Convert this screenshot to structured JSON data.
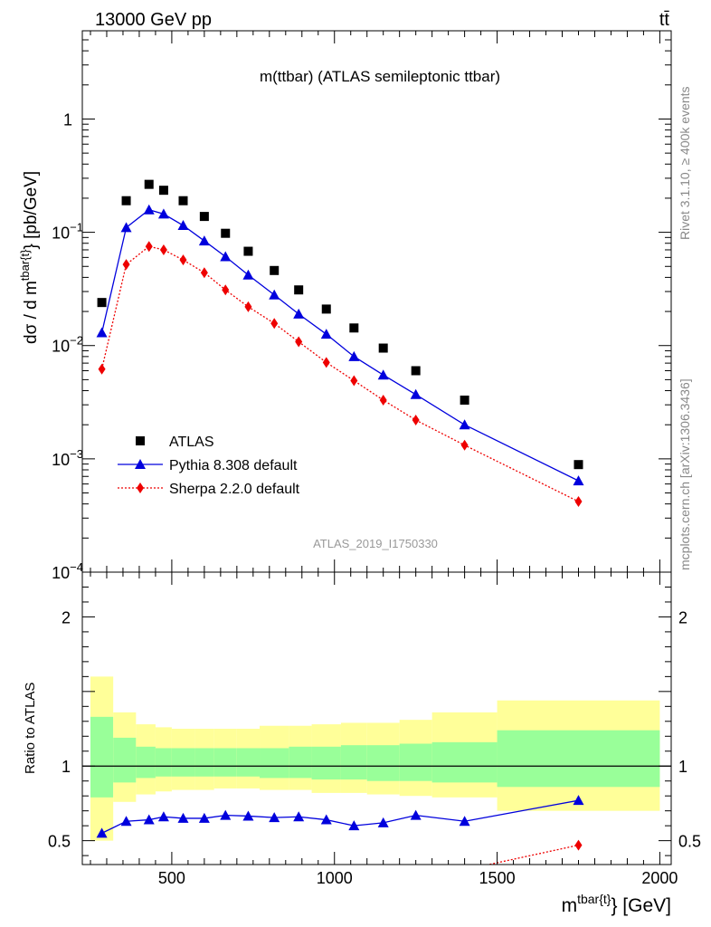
{
  "header": {
    "left": "13000 GeV pp",
    "right": "tt̄",
    "plot_title": "m(ttbar) (ATLAS semileptonic ttbar)",
    "watermark": "ATLAS_2019_I1750330",
    "side_top": "Rivet 3.1.10, ≥ 400k events",
    "side_bottom": "mcplots.cern.ch [arXiv:1306.3436]"
  },
  "colors": {
    "data": "#000000",
    "pythia": "#0000dd",
    "sherpa": "#ee0000",
    "band_inner": "#99ff99",
    "band_outer": "#ffff99"
  },
  "chart_data": [
    {
      "type": "scatter",
      "title": "m(ttbar) (ATLAS semileptonic ttbar)",
      "xlabel_main": "m",
      "xlabel_sup": "tbar{t}",
      "xlabel_tail": "} [GeV]",
      "ylabel": "dσ / d m^{tbar{t}} [pb/GeV]",
      "yscale": "log",
      "ylim": [
        0.0001,
        5
      ],
      "xlim": [
        225,
        2035
      ],
      "yticks": [
        {
          "value": 0.0001,
          "base": "10",
          "exp": "−4"
        },
        {
          "value": 0.001,
          "base": "10",
          "exp": "−3"
        },
        {
          "value": 0.01,
          "base": "10",
          "exp": "−2"
        },
        {
          "value": 0.1,
          "base": "10",
          "exp": "−1"
        },
        {
          "value": 1,
          "base": "1",
          "exp": ""
        }
      ],
      "legend_position": "bottom-left",
      "x": [
        285,
        360,
        430,
        475,
        535,
        600,
        665,
        735,
        815,
        890,
        975,
        1060,
        1150,
        1250,
        1400,
        1750
      ],
      "series": [
        {
          "name": "ATLAS",
          "marker": "square",
          "values": [
            0.024,
            0.19,
            0.265,
            0.235,
            0.19,
            0.138,
            0.098,
            0.068,
            0.046,
            0.031,
            0.021,
            0.0143,
            0.0095,
            0.006,
            0.0033,
            0.00089
          ]
        },
        {
          "name": "Pythia 8.308 default",
          "marker": "triangle",
          "line": "solid",
          "values": [
            0.013,
            0.11,
            0.158,
            0.145,
            0.115,
            0.084,
            0.061,
            0.042,
            0.028,
            0.019,
            0.0126,
            0.008,
            0.0055,
            0.0037,
            0.002,
            0.00064
          ]
        },
        {
          "name": "Sherpa 2.2.0 default",
          "marker": "diamond",
          "line": "dotted",
          "values": [
            0.0062,
            0.052,
            0.075,
            0.07,
            0.057,
            0.044,
            0.031,
            0.022,
            0.0157,
            0.0108,
            0.0071,
            0.0049,
            0.0033,
            0.0022,
            0.00132,
            0.00042
          ]
        }
      ]
    },
    {
      "type": "line",
      "ylabel": "Ratio to ATLAS",
      "ylim": [
        0.34,
        2.3
      ],
      "yticks": [
        0.5,
        1,
        2
      ],
      "xticks": [
        500,
        1000,
        1500,
        2000
      ],
      "bins": [
        [
          250,
          320
        ],
        [
          320,
          390
        ],
        [
          390,
          450
        ],
        [
          450,
          500
        ],
        [
          500,
          570
        ],
        [
          570,
          630
        ],
        [
          630,
          700
        ],
        [
          700,
          770
        ],
        [
          770,
          860
        ],
        [
          860,
          930
        ],
        [
          930,
          1020
        ],
        [
          1020,
          1100
        ],
        [
          1100,
          1200
        ],
        [
          1200,
          1300
        ],
        [
          1300,
          1500
        ],
        [
          1500,
          2000
        ]
      ],
      "band_inner": [
        [
          0.79,
          1.33
        ],
        [
          0.89,
          1.19
        ],
        [
          0.92,
          1.13
        ],
        [
          0.93,
          1.12
        ],
        [
          0.93,
          1.12
        ],
        [
          0.93,
          1.12
        ],
        [
          0.93,
          1.12
        ],
        [
          0.93,
          1.12
        ],
        [
          0.92,
          1.12
        ],
        [
          0.92,
          1.13
        ],
        [
          0.91,
          1.13
        ],
        [
          0.91,
          1.14
        ],
        [
          0.9,
          1.14
        ],
        [
          0.9,
          1.15
        ],
        [
          0.89,
          1.16
        ],
        [
          0.86,
          1.24
        ]
      ],
      "band_outer": [
        [
          0.5,
          1.6
        ],
        [
          0.76,
          1.36
        ],
        [
          0.81,
          1.28
        ],
        [
          0.83,
          1.26
        ],
        [
          0.84,
          1.25
        ],
        [
          0.84,
          1.25
        ],
        [
          0.85,
          1.25
        ],
        [
          0.85,
          1.25
        ],
        [
          0.84,
          1.27
        ],
        [
          0.84,
          1.27
        ],
        [
          0.82,
          1.28
        ],
        [
          0.82,
          1.29
        ],
        [
          0.81,
          1.29
        ],
        [
          0.8,
          1.31
        ],
        [
          0.79,
          1.36
        ],
        [
          0.7,
          1.44
        ]
      ],
      "x": [
        285,
        360,
        430,
        475,
        535,
        600,
        665,
        735,
        815,
        890,
        975,
        1060,
        1150,
        1250,
        1400,
        1750
      ],
      "series": [
        {
          "name": "Pythia 8.308 default",
          "values": [
            0.55,
            0.63,
            0.64,
            0.66,
            0.65,
            0.65,
            0.67,
            0.665,
            0.655,
            0.66,
            0.64,
            0.6,
            0.62,
            0.67,
            0.63,
            0.77
          ]
        },
        {
          "name": "Sherpa 2.2.0 default",
          "x": [
            1390,
            1750
          ],
          "values": [
            0.3,
            0.47
          ]
        }
      ]
    }
  ]
}
